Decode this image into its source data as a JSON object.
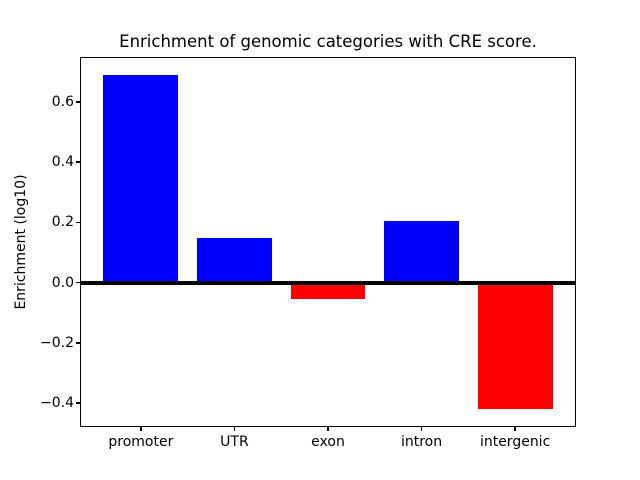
{
  "figure": {
    "background_color": "#ffffff",
    "text_color": "#000000"
  },
  "chart_data": {
    "type": "bar",
    "title": "Enrichment of genomic categories with CRE score.",
    "xlabel": "",
    "ylabel": "Enrichment (log10)",
    "categories": [
      "promoter",
      "UTR",
      "exon",
      "intron",
      "intergenic"
    ],
    "values": [
      0.69,
      0.148,
      -0.055,
      0.206,
      -0.42
    ],
    "bar_colors": [
      "#0000ff",
      "#0000ff",
      "#ff0000",
      "#0000ff",
      "#ff0000"
    ],
    "positive_color": "#0000ff",
    "negative_color": "#ff0000",
    "bar_width": 0.8,
    "xlim": [
      -0.64,
      4.64
    ],
    "ylim": [
      -0.4755,
      0.7455
    ],
    "yticks": [
      -0.4,
      -0.2,
      0.0,
      0.2,
      0.4,
      0.6
    ],
    "ytick_labels": [
      "−0.4",
      "−0.2",
      "0.0",
      "0.2",
      "0.4",
      "0.6"
    ],
    "zero_line": {
      "y": 0,
      "color": "#000000",
      "thickness_px": 4
    },
    "grid": false,
    "legend": null
  }
}
